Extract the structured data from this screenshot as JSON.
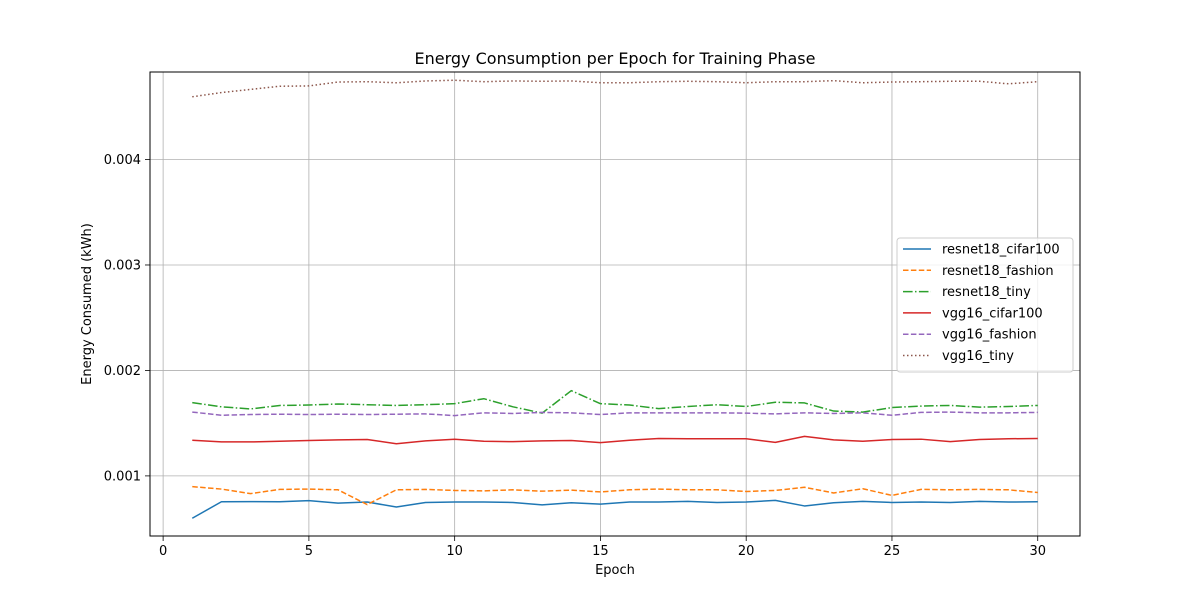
{
  "chart_data": {
    "type": "line",
    "title": "Energy Consumption per Epoch for Training Phase",
    "xlabel": "Epoch",
    "ylabel": "Energy Consumed (kWh)",
    "xlim": [
      -0.45,
      31.45
    ],
    "ylim": [
      0.00043,
      0.00483
    ],
    "xticks": [
      0,
      5,
      10,
      15,
      20,
      25,
      30
    ],
    "xtick_labels": [
      "0",
      "5",
      "10",
      "15",
      "20",
      "25",
      "30"
    ],
    "yticks": [
      0.001,
      0.002,
      0.003,
      0.004
    ],
    "ytick_labels": [
      "0.001",
      "0.002",
      "0.003",
      "0.004"
    ],
    "grid": true,
    "legend_position": "center-right",
    "x": [
      1,
      2,
      3,
      4,
      5,
      6,
      7,
      8,
      9,
      10,
      11,
      12,
      13,
      14,
      15,
      16,
      17,
      18,
      19,
      20,
      21,
      22,
      23,
      24,
      25,
      26,
      27,
      28,
      29,
      30
    ],
    "series": [
      {
        "name": "resnet18_cifar100",
        "color": "#1f77b4",
        "dash": "solid",
        "values": [
          0.000598,
          0.000755,
          0.000756,
          0.000755,
          0.000765,
          0.000742,
          0.000752,
          0.000705,
          0.000748,
          0.000753,
          0.000752,
          0.000748,
          0.000725,
          0.000745,
          0.000732,
          0.000752,
          0.000753,
          0.000758,
          0.000748,
          0.000752,
          0.000768,
          0.000715,
          0.000745,
          0.000758,
          0.000748,
          0.000752,
          0.000748,
          0.000758,
          0.000752,
          0.000755
        ]
      },
      {
        "name": "resnet18_fashion",
        "color": "#ff7f0e",
        "dash": "dashed",
        "values": [
          0.000898,
          0.000875,
          0.000832,
          0.000872,
          0.000875,
          0.000868,
          0.000728,
          0.000868,
          0.000872,
          0.000862,
          0.000858,
          0.000868,
          0.000855,
          0.000865,
          0.000848,
          0.000868,
          0.000875,
          0.000868,
          0.000868,
          0.000852,
          0.000862,
          0.000892,
          0.000838,
          0.000878,
          0.000815,
          0.000872,
          0.000868,
          0.000872,
          0.000868,
          0.000842
        ]
      },
      {
        "name": "resnet18_tiny",
        "color": "#2ca02c",
        "dash": "dashdot",
        "values": [
          0.001695,
          0.001655,
          0.001635,
          0.001668,
          0.001672,
          0.001682,
          0.001675,
          0.001668,
          0.001675,
          0.001685,
          0.001732,
          0.001655,
          0.001595,
          0.001808,
          0.001685,
          0.001672,
          0.001638,
          0.001658,
          0.001675,
          0.001658,
          0.001698,
          0.001692,
          0.001615,
          0.001605,
          0.001648,
          0.001662,
          0.001668,
          0.001652,
          0.001658,
          0.001668
        ]
      },
      {
        "name": "vgg16_cifar100",
        "color": "#d62728",
        "dash": "solid",
        "values": [
          0.001338,
          0.001322,
          0.001322,
          0.001328,
          0.001335,
          0.001342,
          0.001345,
          0.001305,
          0.001332,
          0.001348,
          0.001328,
          0.001325,
          0.001332,
          0.001335,
          0.001315,
          0.001338,
          0.001355,
          0.001352,
          0.001352,
          0.001352,
          0.001318,
          0.001375,
          0.001342,
          0.001328,
          0.001345,
          0.001348,
          0.001325,
          0.001345,
          0.001352,
          0.001355
        ]
      },
      {
        "name": "vgg16_fashion",
        "color": "#9467bd",
        "dash": "dashed",
        "values": [
          0.001605,
          0.001575,
          0.001582,
          0.001585,
          0.001582,
          0.001585,
          0.001582,
          0.001585,
          0.001588,
          0.001572,
          0.001598,
          0.001592,
          0.001602,
          0.001598,
          0.001582,
          0.001598,
          0.001598,
          0.001598,
          0.001598,
          0.001595,
          0.001588,
          0.001598,
          0.001592,
          0.001598,
          0.001575,
          0.001602,
          0.001605,
          0.001598,
          0.001598,
          0.001602
        ]
      },
      {
        "name": "vgg16_tiny",
        "color": "#8c564b",
        "dash": "dotted",
        "values": [
          0.004595,
          0.004635,
          0.004665,
          0.004695,
          0.004698,
          0.004735,
          0.004738,
          0.004728,
          0.004745,
          0.004752,
          0.004738,
          0.004745,
          0.004742,
          0.004745,
          0.004728,
          0.004728,
          0.004738,
          0.004742,
          0.004738,
          0.004728,
          0.004738,
          0.004738,
          0.004748,
          0.004728,
          0.004735,
          0.004738,
          0.004742,
          0.004742,
          0.004718,
          0.004738
        ]
      }
    ]
  }
}
